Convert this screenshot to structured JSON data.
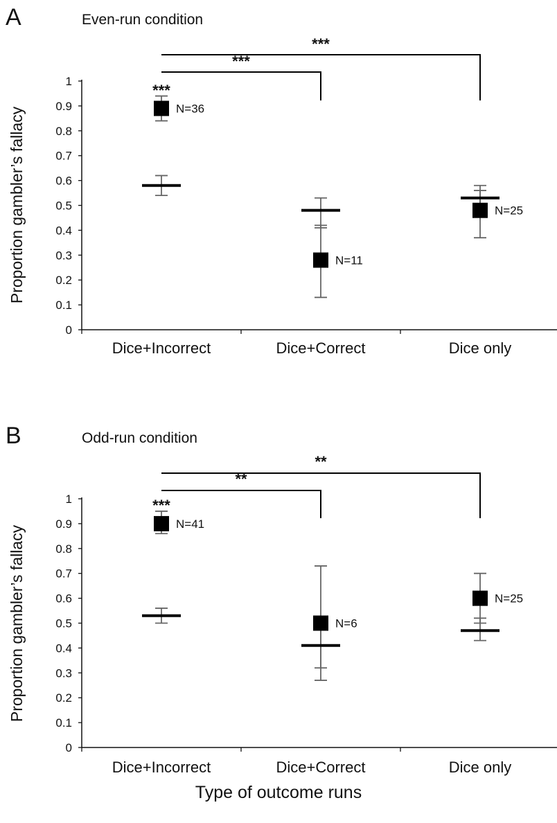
{
  "figure": {
    "xlabel": "Type of outcome runs"
  },
  "chart_data": [
    {
      "type": "scatter",
      "panel_letter": "A",
      "title": "Even-run condition",
      "ylabel": "Proportion gambler’s fallacy",
      "xlabel": "Type of outcome runs",
      "categories": [
        "Dice+Incorrect",
        "Dice+Correct",
        "Dice only"
      ],
      "ylim": [
        0,
        1
      ],
      "yticks": [
        "0",
        "0.1",
        "0.2",
        "0.3",
        "0.4",
        "0.5",
        "0.6",
        "0.7",
        "0.8",
        "0.9",
        "1"
      ],
      "grid": false,
      "observed": {
        "values": [
          0.89,
          0.28,
          0.48
        ],
        "err_low": [
          0.84,
          0.13,
          0.37
        ],
        "err_high": [
          0.94,
          0.42,
          0.56
        ],
        "labels": [
          "N=36",
          "N=11",
          "N=25"
        ]
      },
      "baseline": {
        "values": [
          0.58,
          0.48,
          0.53
        ],
        "err_low": [
          0.54,
          0.41,
          0.5
        ],
        "err_high": [
          0.62,
          0.53,
          0.58
        ]
      },
      "annotations": [
        {
          "text": "***",
          "category": 0,
          "y": 0.97
        }
      ],
      "brackets": [
        {
          "from": 0,
          "to": 1,
          "label": "***"
        },
        {
          "from": 0,
          "to": 2,
          "label": "***"
        }
      ]
    },
    {
      "type": "scatter",
      "panel_letter": "B",
      "title": "Odd-run condition",
      "ylabel": "Proportion gambler’s fallacy",
      "xlabel": "Type of outcome runs",
      "categories": [
        "Dice+Incorrect",
        "Dice+Correct",
        "Dice only"
      ],
      "ylim": [
        0,
        1
      ],
      "yticks": [
        "0",
        "0.1",
        "0.2",
        "0.3",
        "0.4",
        "0.5",
        "0.6",
        "0.7",
        "0.8",
        "0.9",
        "1"
      ],
      "grid": false,
      "observed": {
        "values": [
          0.9,
          0.5,
          0.6
        ],
        "err_low": [
          0.86,
          0.27,
          0.5
        ],
        "err_high": [
          0.95,
          0.73,
          0.7
        ],
        "labels": [
          "N=41",
          "N=6",
          "N=25"
        ]
      },
      "baseline": {
        "values": [
          0.53,
          0.41,
          0.47
        ],
        "err_low": [
          0.5,
          0.32,
          0.43
        ],
        "err_high": [
          0.56,
          0.5,
          0.52
        ]
      },
      "annotations": [
        {
          "text": "***",
          "category": 0,
          "y": 0.98
        }
      ],
      "brackets": [
        {
          "from": 0,
          "to": 1,
          "label": "**"
        },
        {
          "from": 0,
          "to": 2,
          "label": "**"
        }
      ]
    }
  ]
}
